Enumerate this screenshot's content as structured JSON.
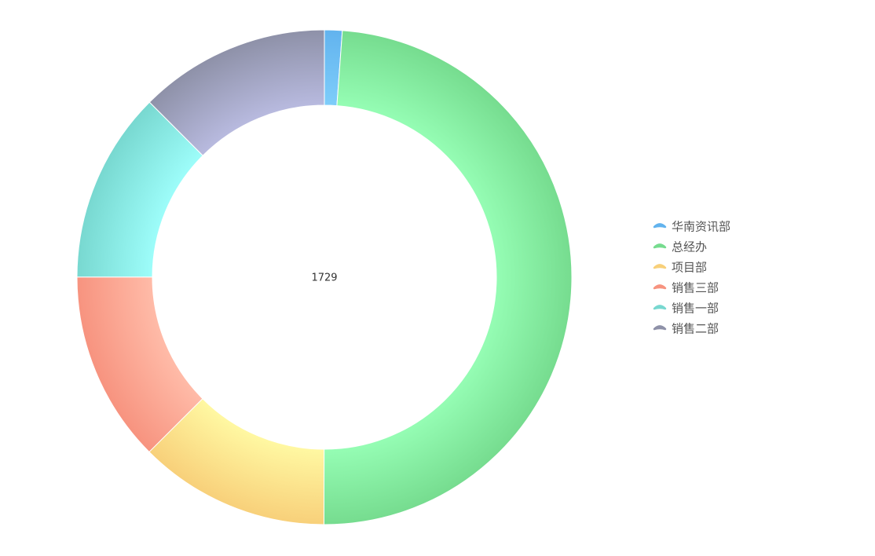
{
  "chart_data": {
    "type": "donut",
    "total": 1729,
    "categories": [
      "华南资讯部",
      "总经办",
      "项目部",
      "销售三部",
      "销售一部",
      "销售二部"
    ],
    "values": [
      20,
      845,
      216,
      216,
      216,
      216
    ],
    "colors": [
      "#62b3ee",
      "#76dc8f",
      "#f8d07a",
      "#f7937f",
      "#78d8d0",
      "#8e91a8"
    ],
    "highlight_colors": [
      "#7ecdfa",
      "#95fdb4",
      "#fff8a2",
      "#ffbba8",
      "#9dfdfa",
      "#b8badf"
    ],
    "legend": "right"
  }
}
